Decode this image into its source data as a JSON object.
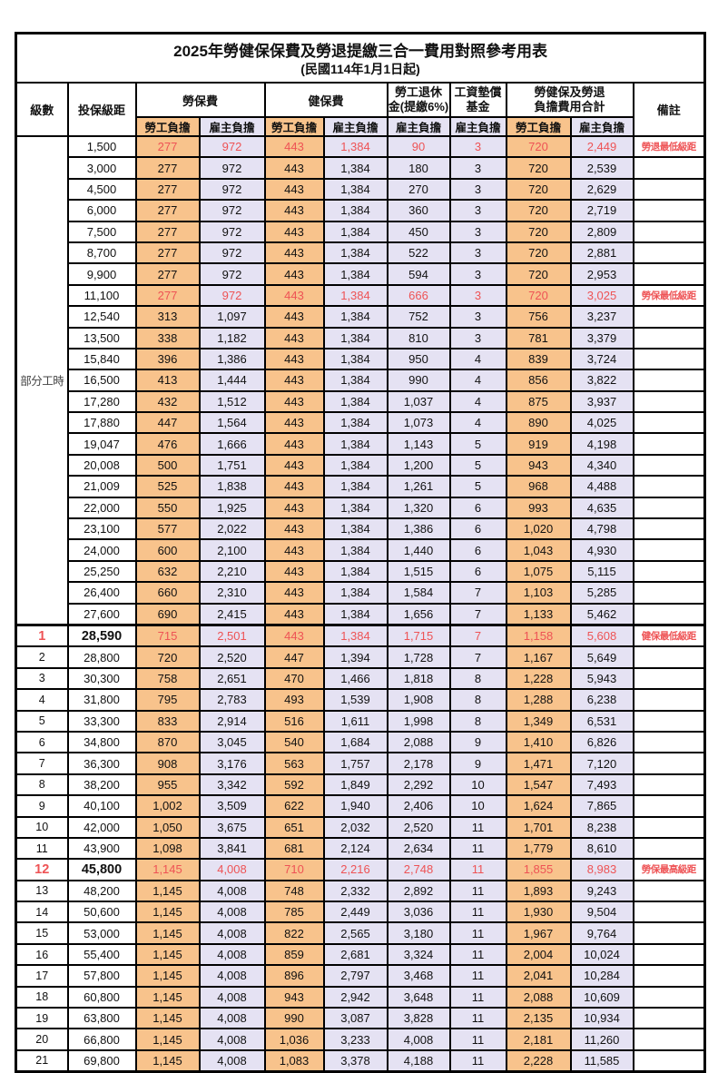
{
  "title": "2025年勞健保保費及勞退提繳三合一費用對照參考用表",
  "subtitle": "(民國114年1月1日起)",
  "header": {
    "level": "級數",
    "bracket": "投保級距",
    "labor_ins": "勞保費",
    "health_ins": "健保費",
    "pension_l1": "勞工退休",
    "pension_l2": "金(提繳6%)",
    "fund_l1": "工資墊償",
    "fund_l2": "基金",
    "total_l1": "勞健保及勞退",
    "total_l2": "負擔費用合計",
    "remark": "備註",
    "employee": "勞工負擔",
    "employer": "雇主負擔"
  },
  "part_time_label": "部分工時",
  "part_time_rowspan": 23,
  "colors": {
    "employee_col_bg": "#F8C38C",
    "employer_col_bg": "#E5E2F3",
    "highlight_text": "#EE5355",
    "border": "#000000"
  },
  "remarks_legend": [
    "勞退最低級距",
    "勞保最低級距",
    "健保最低級距",
    "勞保最高級距"
  ],
  "rows": [
    {
      "level": "",
      "bracket": "1,500",
      "labor_emp": "277",
      "labor_er": "972",
      "health_emp": "443",
      "health_er": "1,384",
      "pension_er": "90",
      "fund_er": "3",
      "total_emp": "720",
      "total_er": "2,449",
      "remark": "勞退最低級距",
      "red": true,
      "emphasis": false
    },
    {
      "level": "",
      "bracket": "3,000",
      "labor_emp": "277",
      "labor_er": "972",
      "health_emp": "443",
      "health_er": "1,384",
      "pension_er": "180",
      "fund_er": "3",
      "total_emp": "720",
      "total_er": "2,539",
      "remark": "",
      "red": false,
      "emphasis": false
    },
    {
      "level": "",
      "bracket": "4,500",
      "labor_emp": "277",
      "labor_er": "972",
      "health_emp": "443",
      "health_er": "1,384",
      "pension_er": "270",
      "fund_er": "3",
      "total_emp": "720",
      "total_er": "2,629",
      "remark": "",
      "red": false,
      "emphasis": false
    },
    {
      "level": "",
      "bracket": "6,000",
      "labor_emp": "277",
      "labor_er": "972",
      "health_emp": "443",
      "health_er": "1,384",
      "pension_er": "360",
      "fund_er": "3",
      "total_emp": "720",
      "total_er": "2,719",
      "remark": "",
      "red": false,
      "emphasis": false
    },
    {
      "level": "",
      "bracket": "7,500",
      "labor_emp": "277",
      "labor_er": "972",
      "health_emp": "443",
      "health_er": "1,384",
      "pension_er": "450",
      "fund_er": "3",
      "total_emp": "720",
      "total_er": "2,809",
      "remark": "",
      "red": false,
      "emphasis": false
    },
    {
      "level": "",
      "bracket": "8,700",
      "labor_emp": "277",
      "labor_er": "972",
      "health_emp": "443",
      "health_er": "1,384",
      "pension_er": "522",
      "fund_er": "3",
      "total_emp": "720",
      "total_er": "2,881",
      "remark": "",
      "red": false,
      "emphasis": false
    },
    {
      "level": "",
      "bracket": "9,900",
      "labor_emp": "277",
      "labor_er": "972",
      "health_emp": "443",
      "health_er": "1,384",
      "pension_er": "594",
      "fund_er": "3",
      "total_emp": "720",
      "total_er": "2,953",
      "remark": "",
      "red": false,
      "emphasis": false
    },
    {
      "level": "",
      "bracket": "11,100",
      "labor_emp": "277",
      "labor_er": "972",
      "health_emp": "443",
      "health_er": "1,384",
      "pension_er": "666",
      "fund_er": "3",
      "total_emp": "720",
      "total_er": "3,025",
      "remark": "勞保最低級距",
      "red": true,
      "emphasis": false
    },
    {
      "level": "",
      "bracket": "12,540",
      "labor_emp": "313",
      "labor_er": "1,097",
      "health_emp": "443",
      "health_er": "1,384",
      "pension_er": "752",
      "fund_er": "3",
      "total_emp": "756",
      "total_er": "3,237",
      "remark": "",
      "red": false,
      "emphasis": false
    },
    {
      "level": "",
      "bracket": "13,500",
      "labor_emp": "338",
      "labor_er": "1,182",
      "health_emp": "443",
      "health_er": "1,384",
      "pension_er": "810",
      "fund_er": "3",
      "total_emp": "781",
      "total_er": "3,379",
      "remark": "",
      "red": false,
      "emphasis": false
    },
    {
      "level": "",
      "bracket": "15,840",
      "labor_emp": "396",
      "labor_er": "1,386",
      "health_emp": "443",
      "health_er": "1,384",
      "pension_er": "950",
      "fund_er": "4",
      "total_emp": "839",
      "total_er": "3,724",
      "remark": "",
      "red": false,
      "emphasis": false
    },
    {
      "level": "",
      "bracket": "16,500",
      "labor_emp": "413",
      "labor_er": "1,444",
      "health_emp": "443",
      "health_er": "1,384",
      "pension_er": "990",
      "fund_er": "4",
      "total_emp": "856",
      "total_er": "3,822",
      "remark": "",
      "red": false,
      "emphasis": false
    },
    {
      "level": "",
      "bracket": "17,280",
      "labor_emp": "432",
      "labor_er": "1,512",
      "health_emp": "443",
      "health_er": "1,384",
      "pension_er": "1,037",
      "fund_er": "4",
      "total_emp": "875",
      "total_er": "3,937",
      "remark": "",
      "red": false,
      "emphasis": false
    },
    {
      "level": "",
      "bracket": "17,880",
      "labor_emp": "447",
      "labor_er": "1,564",
      "health_emp": "443",
      "health_er": "1,384",
      "pension_er": "1,073",
      "fund_er": "4",
      "total_emp": "890",
      "total_er": "4,025",
      "remark": "",
      "red": false,
      "emphasis": false
    },
    {
      "level": "",
      "bracket": "19,047",
      "labor_emp": "476",
      "labor_er": "1,666",
      "health_emp": "443",
      "health_er": "1,384",
      "pension_er": "1,143",
      "fund_er": "5",
      "total_emp": "919",
      "total_er": "4,198",
      "remark": "",
      "red": false,
      "emphasis": false
    },
    {
      "level": "",
      "bracket": "20,008",
      "labor_emp": "500",
      "labor_er": "1,751",
      "health_emp": "443",
      "health_er": "1,384",
      "pension_er": "1,200",
      "fund_er": "5",
      "total_emp": "943",
      "total_er": "4,340",
      "remark": "",
      "red": false,
      "emphasis": false
    },
    {
      "level": "",
      "bracket": "21,009",
      "labor_emp": "525",
      "labor_er": "1,838",
      "health_emp": "443",
      "health_er": "1,384",
      "pension_er": "1,261",
      "fund_er": "5",
      "total_emp": "968",
      "total_er": "4,488",
      "remark": "",
      "red": false,
      "emphasis": false
    },
    {
      "level": "",
      "bracket": "22,000",
      "labor_emp": "550",
      "labor_er": "1,925",
      "health_emp": "443",
      "health_er": "1,384",
      "pension_er": "1,320",
      "fund_er": "6",
      "total_emp": "993",
      "total_er": "4,635",
      "remark": "",
      "red": false,
      "emphasis": false
    },
    {
      "level": "",
      "bracket": "23,100",
      "labor_emp": "577",
      "labor_er": "2,022",
      "health_emp": "443",
      "health_er": "1,384",
      "pension_er": "1,386",
      "fund_er": "6",
      "total_emp": "1,020",
      "total_er": "4,798",
      "remark": "",
      "red": false,
      "emphasis": false
    },
    {
      "level": "",
      "bracket": "24,000",
      "labor_emp": "600",
      "labor_er": "2,100",
      "health_emp": "443",
      "health_er": "1,384",
      "pension_er": "1,440",
      "fund_er": "6",
      "total_emp": "1,043",
      "total_er": "4,930",
      "remark": "",
      "red": false,
      "emphasis": false
    },
    {
      "level": "",
      "bracket": "25,250",
      "labor_emp": "632",
      "labor_er": "2,210",
      "health_emp": "443",
      "health_er": "1,384",
      "pension_er": "1,515",
      "fund_er": "6",
      "total_emp": "1,075",
      "total_er": "5,115",
      "remark": "",
      "red": false,
      "emphasis": false
    },
    {
      "level": "",
      "bracket": "26,400",
      "labor_emp": "660",
      "labor_er": "2,310",
      "health_emp": "443",
      "health_er": "1,384",
      "pension_er": "1,584",
      "fund_er": "7",
      "total_emp": "1,103",
      "total_er": "5,285",
      "remark": "",
      "red": false,
      "emphasis": false
    },
    {
      "level": "",
      "bracket": "27,600",
      "labor_emp": "690",
      "labor_er": "2,415",
      "health_emp": "443",
      "health_er": "1,384",
      "pension_er": "1,656",
      "fund_er": "7",
      "total_emp": "1,133",
      "total_er": "5,462",
      "remark": "",
      "red": false,
      "emphasis": false
    },
    {
      "level": "1",
      "bracket": "28,590",
      "labor_emp": "715",
      "labor_er": "2,501",
      "health_emp": "443",
      "health_er": "1,384",
      "pension_er": "1,715",
      "fund_er": "7",
      "total_emp": "1,158",
      "total_er": "5,608",
      "remark": "健保最低級距",
      "red": true,
      "emphasis": true
    },
    {
      "level": "2",
      "bracket": "28,800",
      "labor_emp": "720",
      "labor_er": "2,520",
      "health_emp": "447",
      "health_er": "1,394",
      "pension_er": "1,728",
      "fund_er": "7",
      "total_emp": "1,167",
      "total_er": "5,649",
      "remark": "",
      "red": false,
      "emphasis": false
    },
    {
      "level": "3",
      "bracket": "30,300",
      "labor_emp": "758",
      "labor_er": "2,651",
      "health_emp": "470",
      "health_er": "1,466",
      "pension_er": "1,818",
      "fund_er": "8",
      "total_emp": "1,228",
      "total_er": "5,943",
      "remark": "",
      "red": false,
      "emphasis": false
    },
    {
      "level": "4",
      "bracket": "31,800",
      "labor_emp": "795",
      "labor_er": "2,783",
      "health_emp": "493",
      "health_er": "1,539",
      "pension_er": "1,908",
      "fund_er": "8",
      "total_emp": "1,288",
      "total_er": "6,238",
      "remark": "",
      "red": false,
      "emphasis": false
    },
    {
      "level": "5",
      "bracket": "33,300",
      "labor_emp": "833",
      "labor_er": "2,914",
      "health_emp": "516",
      "health_er": "1,611",
      "pension_er": "1,998",
      "fund_er": "8",
      "total_emp": "1,349",
      "total_er": "6,531",
      "remark": "",
      "red": false,
      "emphasis": false
    },
    {
      "level": "6",
      "bracket": "34,800",
      "labor_emp": "870",
      "labor_er": "3,045",
      "health_emp": "540",
      "health_er": "1,684",
      "pension_er": "2,088",
      "fund_er": "9",
      "total_emp": "1,410",
      "total_er": "6,826",
      "remark": "",
      "red": false,
      "emphasis": false
    },
    {
      "level": "7",
      "bracket": "36,300",
      "labor_emp": "908",
      "labor_er": "3,176",
      "health_emp": "563",
      "health_er": "1,757",
      "pension_er": "2,178",
      "fund_er": "9",
      "total_emp": "1,471",
      "total_er": "7,120",
      "remark": "",
      "red": false,
      "emphasis": false
    },
    {
      "level": "8",
      "bracket": "38,200",
      "labor_emp": "955",
      "labor_er": "3,342",
      "health_emp": "592",
      "health_er": "1,849",
      "pension_er": "2,292",
      "fund_er": "10",
      "total_emp": "1,547",
      "total_er": "7,493",
      "remark": "",
      "red": false,
      "emphasis": false
    },
    {
      "level": "9",
      "bracket": "40,100",
      "labor_emp": "1,002",
      "labor_er": "3,509",
      "health_emp": "622",
      "health_er": "1,940",
      "pension_er": "2,406",
      "fund_er": "10",
      "total_emp": "1,624",
      "total_er": "7,865",
      "remark": "",
      "red": false,
      "emphasis": false
    },
    {
      "level": "10",
      "bracket": "42,000",
      "labor_emp": "1,050",
      "labor_er": "3,675",
      "health_emp": "651",
      "health_er": "2,032",
      "pension_er": "2,520",
      "fund_er": "11",
      "total_emp": "1,701",
      "total_er": "8,238",
      "remark": "",
      "red": false,
      "emphasis": false
    },
    {
      "level": "11",
      "bracket": "43,900",
      "labor_emp": "1,098",
      "labor_er": "3,841",
      "health_emp": "681",
      "health_er": "2,124",
      "pension_er": "2,634",
      "fund_er": "11",
      "total_emp": "1,779",
      "total_er": "8,610",
      "remark": "",
      "red": false,
      "emphasis": false
    },
    {
      "level": "12",
      "bracket": "45,800",
      "labor_emp": "1,145",
      "labor_er": "4,008",
      "health_emp": "710",
      "health_er": "2,216",
      "pension_er": "2,748",
      "fund_er": "11",
      "total_emp": "1,855",
      "total_er": "8,983",
      "remark": "勞保最高級距",
      "red": true,
      "emphasis": true
    },
    {
      "level": "13",
      "bracket": "48,200",
      "labor_emp": "1,145",
      "labor_er": "4,008",
      "health_emp": "748",
      "health_er": "2,332",
      "pension_er": "2,892",
      "fund_er": "11",
      "total_emp": "1,893",
      "total_er": "9,243",
      "remark": "",
      "red": false,
      "emphasis": false
    },
    {
      "level": "14",
      "bracket": "50,600",
      "labor_emp": "1,145",
      "labor_er": "4,008",
      "health_emp": "785",
      "health_er": "2,449",
      "pension_er": "3,036",
      "fund_er": "11",
      "total_emp": "1,930",
      "total_er": "9,504",
      "remark": "",
      "red": false,
      "emphasis": false
    },
    {
      "level": "15",
      "bracket": "53,000",
      "labor_emp": "1,145",
      "labor_er": "4,008",
      "health_emp": "822",
      "health_er": "2,565",
      "pension_er": "3,180",
      "fund_er": "11",
      "total_emp": "1,967",
      "total_er": "9,764",
      "remark": "",
      "red": false,
      "emphasis": false
    },
    {
      "level": "16",
      "bracket": "55,400",
      "labor_emp": "1,145",
      "labor_er": "4,008",
      "health_emp": "859",
      "health_er": "2,681",
      "pension_er": "3,324",
      "fund_er": "11",
      "total_emp": "2,004",
      "total_er": "10,024",
      "remark": "",
      "red": false,
      "emphasis": false
    },
    {
      "level": "17",
      "bracket": "57,800",
      "labor_emp": "1,145",
      "labor_er": "4,008",
      "health_emp": "896",
      "health_er": "2,797",
      "pension_er": "3,468",
      "fund_er": "11",
      "total_emp": "2,041",
      "total_er": "10,284",
      "remark": "",
      "red": false,
      "emphasis": false
    },
    {
      "level": "18",
      "bracket": "60,800",
      "labor_emp": "1,145",
      "labor_er": "4,008",
      "health_emp": "943",
      "health_er": "2,942",
      "pension_er": "3,648",
      "fund_er": "11",
      "total_emp": "2,088",
      "total_er": "10,609",
      "remark": "",
      "red": false,
      "emphasis": false
    },
    {
      "level": "19",
      "bracket": "63,800",
      "labor_emp": "1,145",
      "labor_er": "4,008",
      "health_emp": "990",
      "health_er": "3,087",
      "pension_er": "3,828",
      "fund_er": "11",
      "total_emp": "2,135",
      "total_er": "10,934",
      "remark": "",
      "red": false,
      "emphasis": false
    },
    {
      "level": "20",
      "bracket": "66,800",
      "labor_emp": "1,145",
      "labor_er": "4,008",
      "health_emp": "1,036",
      "health_er": "3,233",
      "pension_er": "4,008",
      "fund_er": "11",
      "total_emp": "2,181",
      "total_er": "11,260",
      "remark": "",
      "red": false,
      "emphasis": false
    },
    {
      "level": "21",
      "bracket": "69,800",
      "labor_emp": "1,145",
      "labor_er": "4,008",
      "health_emp": "1,083",
      "health_er": "3,378",
      "pension_er": "4,188",
      "fund_er": "11",
      "total_emp": "2,228",
      "total_er": "11,585",
      "remark": "",
      "red": false,
      "emphasis": false
    }
  ]
}
